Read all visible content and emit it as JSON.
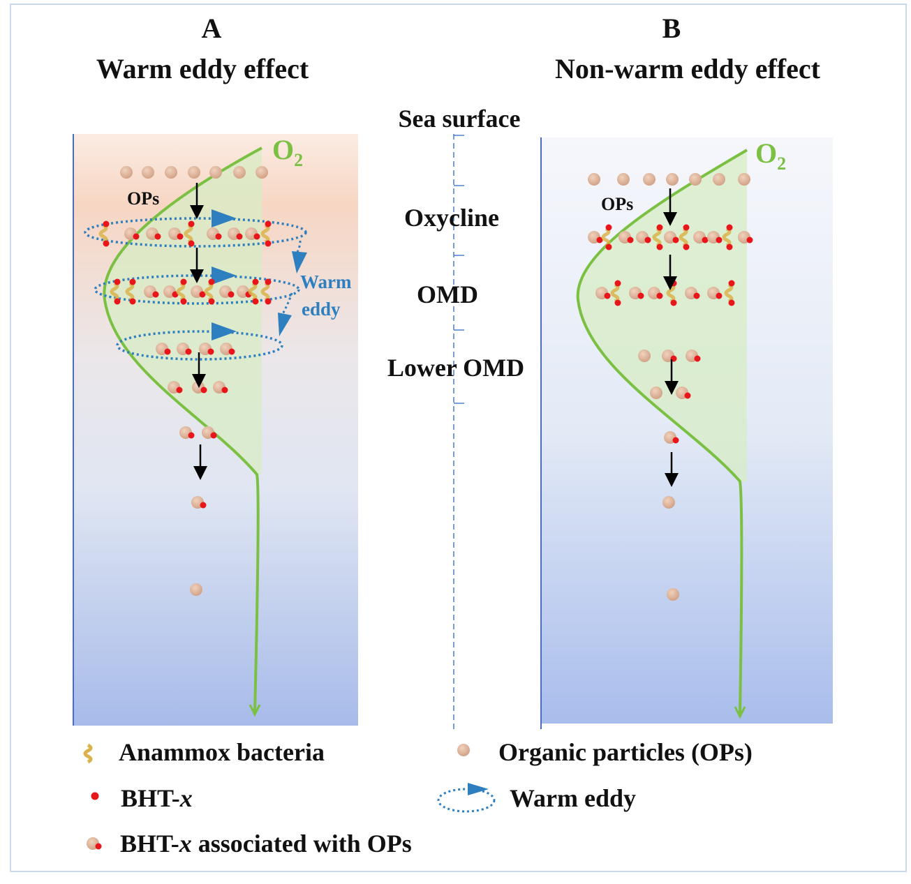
{
  "panel_a": {
    "letter": "A",
    "title": "Warm eddy effect",
    "o2_label": "O",
    "o2_sub": "2",
    "ops_label": "OPs",
    "eddy_label_1": "Warm",
    "eddy_label_2": "eddy"
  },
  "panel_b": {
    "letter": "B",
    "title": "Non-warm eddy effect",
    "o2_label": "O",
    "o2_sub": "2",
    "ops_label": "OPs"
  },
  "depth_zones": {
    "surface": "Sea surface",
    "oxycline": "Oxycline",
    "omd": "OMD",
    "lower_omd": "Lower OMD"
  },
  "legend": {
    "anammox": "Anammox bacteria",
    "ops": "Organic particles (OPs)",
    "bht_prefix": "BHT-",
    "bht_var": "x",
    "warm_eddy": "Warm eddy",
    "bht_ops_prefix": "BHT-",
    "bht_ops_var": "x",
    "bht_ops_suffix": " associated with OPs"
  },
  "colors": {
    "o2": "#7cc043",
    "eddy": "#2e7fc0",
    "particle": "#ddb196",
    "bht": "#e8151b",
    "bacteria": "#d9b34a"
  }
}
